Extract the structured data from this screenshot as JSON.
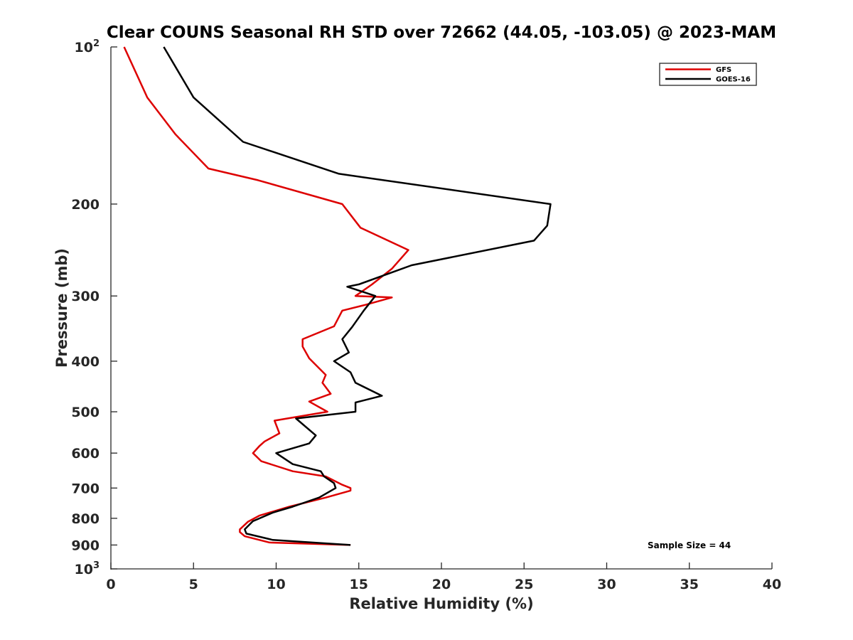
{
  "chart_data": {
    "type": "line",
    "title": "Clear COUNS Seasonal RH STD over 72662 (44.05, -103.05) @ 2023-MAM",
    "xlabel": "Relative Humidity (%)",
    "ylabel": "Pressure (mb)",
    "xlim": [
      0,
      40
    ],
    "ylim": [
      100,
      1000
    ],
    "yscale": "log",
    "y_reversed": true,
    "xticks": [
      {
        "value": 0,
        "label": "0"
      },
      {
        "value": 5,
        "label": "5"
      },
      {
        "value": 10,
        "label": "10"
      },
      {
        "value": 15,
        "label": "15"
      },
      {
        "value": 20,
        "label": "20"
      },
      {
        "value": 25,
        "label": "25"
      },
      {
        "value": 30,
        "label": "30"
      },
      {
        "value": 35,
        "label": "35"
      },
      {
        "value": 40,
        "label": "40"
      }
    ],
    "yticks": [
      {
        "value": 100,
        "base": "10",
        "exp": "2"
      },
      {
        "value": 200,
        "base": "200",
        "exp": ""
      },
      {
        "value": 300,
        "base": "300",
        "exp": ""
      },
      {
        "value": 400,
        "base": "400",
        "exp": ""
      },
      {
        "value": 500,
        "base": "500",
        "exp": ""
      },
      {
        "value": 600,
        "base": "600",
        "exp": ""
      },
      {
        "value": 700,
        "base": "700",
        "exp": ""
      },
      {
        "value": 800,
        "base": "800",
        "exp": ""
      },
      {
        "value": 900,
        "base": "900",
        "exp": ""
      },
      {
        "value": 1000,
        "base": "10",
        "exp": "3"
      }
    ],
    "legend_position": "top-right",
    "annotation": "Sample Size = 44",
    "series": [
      {
        "name": "GFS",
        "color": "#dd0000",
        "points": [
          {
            "x": 0.8,
            "p": 100
          },
          {
            "x": 2.2,
            "p": 125
          },
          {
            "x": 3.9,
            "p": 147
          },
          {
            "x": 5.9,
            "p": 171
          },
          {
            "x": 8.9,
            "p": 180
          },
          {
            "x": 14.0,
            "p": 200
          },
          {
            "x": 15.1,
            "p": 222
          },
          {
            "x": 18.0,
            "p": 245
          },
          {
            "x": 17.0,
            "p": 266
          },
          {
            "x": 15.8,
            "p": 285
          },
          {
            "x": 14.8,
            "p": 300
          },
          {
            "x": 17.0,
            "p": 302
          },
          {
            "x": 15.4,
            "p": 312
          },
          {
            "x": 14.0,
            "p": 320
          },
          {
            "x": 13.5,
            "p": 343
          },
          {
            "x": 11.6,
            "p": 363
          },
          {
            "x": 11.6,
            "p": 375
          },
          {
            "x": 12.0,
            "p": 395
          },
          {
            "x": 13.0,
            "p": 425
          },
          {
            "x": 12.8,
            "p": 440
          },
          {
            "x": 13.3,
            "p": 462
          },
          {
            "x": 12.0,
            "p": 478
          },
          {
            "x": 13.1,
            "p": 500
          },
          {
            "x": 9.9,
            "p": 520
          },
          {
            "x": 10.2,
            "p": 550
          },
          {
            "x": 9.3,
            "p": 570
          },
          {
            "x": 9.0,
            "p": 581
          },
          {
            "x": 8.6,
            "p": 600
          },
          {
            "x": 9.1,
            "p": 622
          },
          {
            "x": 11.0,
            "p": 650
          },
          {
            "x": 13.0,
            "p": 665
          },
          {
            "x": 14.0,
            "p": 690
          },
          {
            "x": 14.5,
            "p": 700
          },
          {
            "x": 14.5,
            "p": 708
          },
          {
            "x": 13.0,
            "p": 730
          },
          {
            "x": 10.8,
            "p": 760
          },
          {
            "x": 9.0,
            "p": 790
          },
          {
            "x": 8.3,
            "p": 812
          },
          {
            "x": 7.8,
            "p": 840
          },
          {
            "x": 7.8,
            "p": 850
          },
          {
            "x": 8.1,
            "p": 866
          },
          {
            "x": 9.6,
            "p": 890
          },
          {
            "x": 14.5,
            "p": 900
          }
        ]
      },
      {
        "name": "GOES-16",
        "color": "#000000",
        "points": [
          {
            "x": 3.2,
            "p": 100
          },
          {
            "x": 5.0,
            "p": 125
          },
          {
            "x": 8.0,
            "p": 152
          },
          {
            "x": 13.8,
            "p": 175
          },
          {
            "x": 26.6,
            "p": 200
          },
          {
            "x": 26.4,
            "p": 220
          },
          {
            "x": 25.6,
            "p": 235
          },
          {
            "x": 18.2,
            "p": 262
          },
          {
            "x": 15.0,
            "p": 285
          },
          {
            "x": 14.3,
            "p": 288
          },
          {
            "x": 16.0,
            "p": 300
          },
          {
            "x": 15.3,
            "p": 320
          },
          {
            "x": 14.6,
            "p": 344
          },
          {
            "x": 14.0,
            "p": 363
          },
          {
            "x": 14.4,
            "p": 385
          },
          {
            "x": 13.5,
            "p": 400
          },
          {
            "x": 14.5,
            "p": 420
          },
          {
            "x": 14.8,
            "p": 440
          },
          {
            "x": 16.4,
            "p": 466
          },
          {
            "x": 14.8,
            "p": 480
          },
          {
            "x": 14.8,
            "p": 500
          },
          {
            "x": 11.2,
            "p": 515
          },
          {
            "x": 12.4,
            "p": 555
          },
          {
            "x": 12.0,
            "p": 575
          },
          {
            "x": 10.0,
            "p": 600
          },
          {
            "x": 11.0,
            "p": 630
          },
          {
            "x": 12.7,
            "p": 650
          },
          {
            "x": 12.9,
            "p": 665
          },
          {
            "x": 13.5,
            "p": 685
          },
          {
            "x": 13.6,
            "p": 700
          },
          {
            "x": 12.6,
            "p": 730
          },
          {
            "x": 11.0,
            "p": 760
          },
          {
            "x": 9.8,
            "p": 780
          },
          {
            "x": 8.8,
            "p": 805
          },
          {
            "x": 8.6,
            "p": 810
          },
          {
            "x": 8.1,
            "p": 840
          },
          {
            "x": 8.2,
            "p": 856
          },
          {
            "x": 9.8,
            "p": 880
          },
          {
            "x": 14.5,
            "p": 900
          }
        ]
      }
    ]
  }
}
